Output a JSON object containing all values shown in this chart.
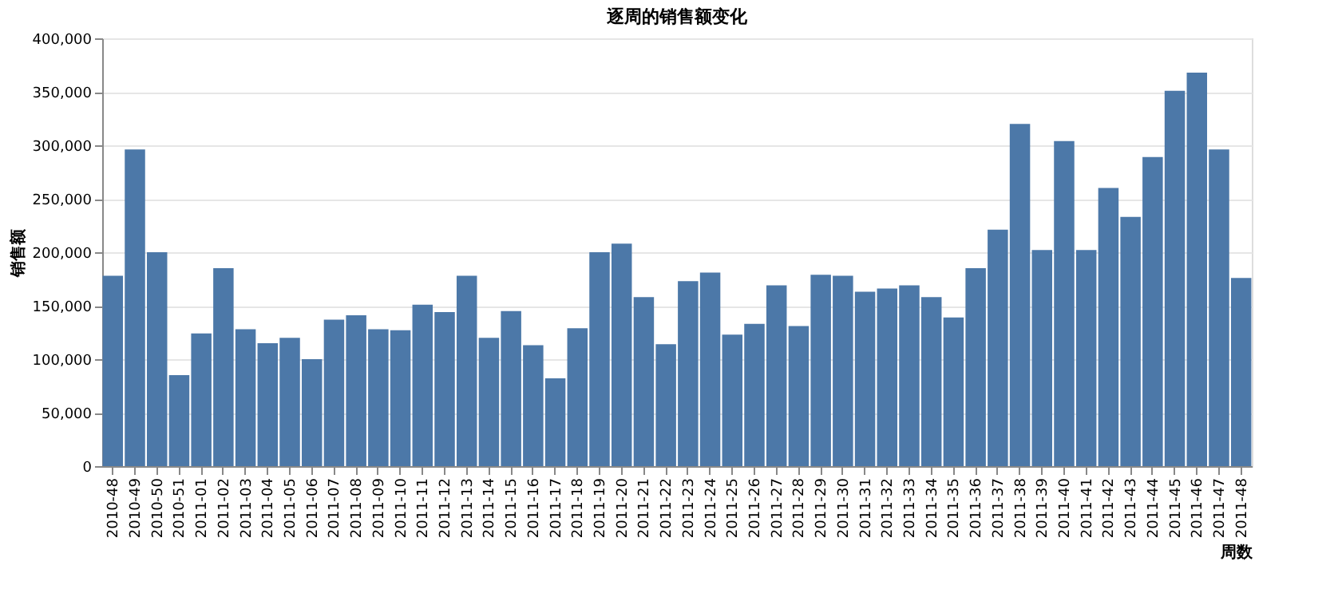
{
  "chart_data": {
    "type": "bar",
    "title": "逐周的销售额变化",
    "xlabel": "周数",
    "ylabel": "销售额",
    "categories": [
      "2010-48",
      "2010-49",
      "2010-50",
      "2010-51",
      "2011-01",
      "2011-02",
      "2011-03",
      "2011-04",
      "2011-05",
      "2011-06",
      "2011-07",
      "2011-08",
      "2011-09",
      "2011-10",
      "2011-11",
      "2011-12",
      "2011-13",
      "2011-14",
      "2011-15",
      "2011-16",
      "2011-17",
      "2011-18",
      "2011-19",
      "2011-20",
      "2011-21",
      "2011-22",
      "2011-23",
      "2011-24",
      "2011-25",
      "2011-26",
      "2011-27",
      "2011-28",
      "2011-29",
      "2011-30",
      "2011-31",
      "2011-32",
      "2011-33",
      "2011-34",
      "2011-35",
      "2011-36",
      "2011-37",
      "2011-38",
      "2011-39",
      "2011-40",
      "2011-41",
      "2011-42",
      "2011-43",
      "2011-44",
      "2011-45",
      "2011-46",
      "2011-47",
      "2011-48"
    ],
    "values": [
      178000,
      296000,
      200000,
      85000,
      124000,
      185000,
      128000,
      115000,
      120000,
      100000,
      137000,
      141000,
      128000,
      127000,
      151000,
      144000,
      178000,
      120000,
      145000,
      113000,
      82000,
      129000,
      200000,
      208000,
      158000,
      114000,
      173000,
      181000,
      123000,
      133000,
      169000,
      131000,
      179000,
      178000,
      163000,
      166000,
      169000,
      158000,
      139000,
      185000,
      221000,
      320000,
      202000,
      304000,
      202000,
      260000,
      233000,
      289000,
      351000,
      368000,
      296000,
      176000
    ],
    "color": "#4c78a8",
    "ylim": [
      0,
      400000
    ],
    "yticks": [
      {
        "value": 0,
        "label": "0"
      },
      {
        "value": 50000,
        "label": "50,000"
      },
      {
        "value": 100000,
        "label": "100,000"
      },
      {
        "value": 150000,
        "label": "150,000"
      },
      {
        "value": 200000,
        "label": "200,000"
      },
      {
        "value": 250000,
        "label": "250,000"
      },
      {
        "value": 300000,
        "label": "300,000"
      },
      {
        "value": 350000,
        "label": "350,000"
      },
      {
        "value": 400000,
        "label": "400,000"
      }
    ],
    "grid": "y"
  }
}
